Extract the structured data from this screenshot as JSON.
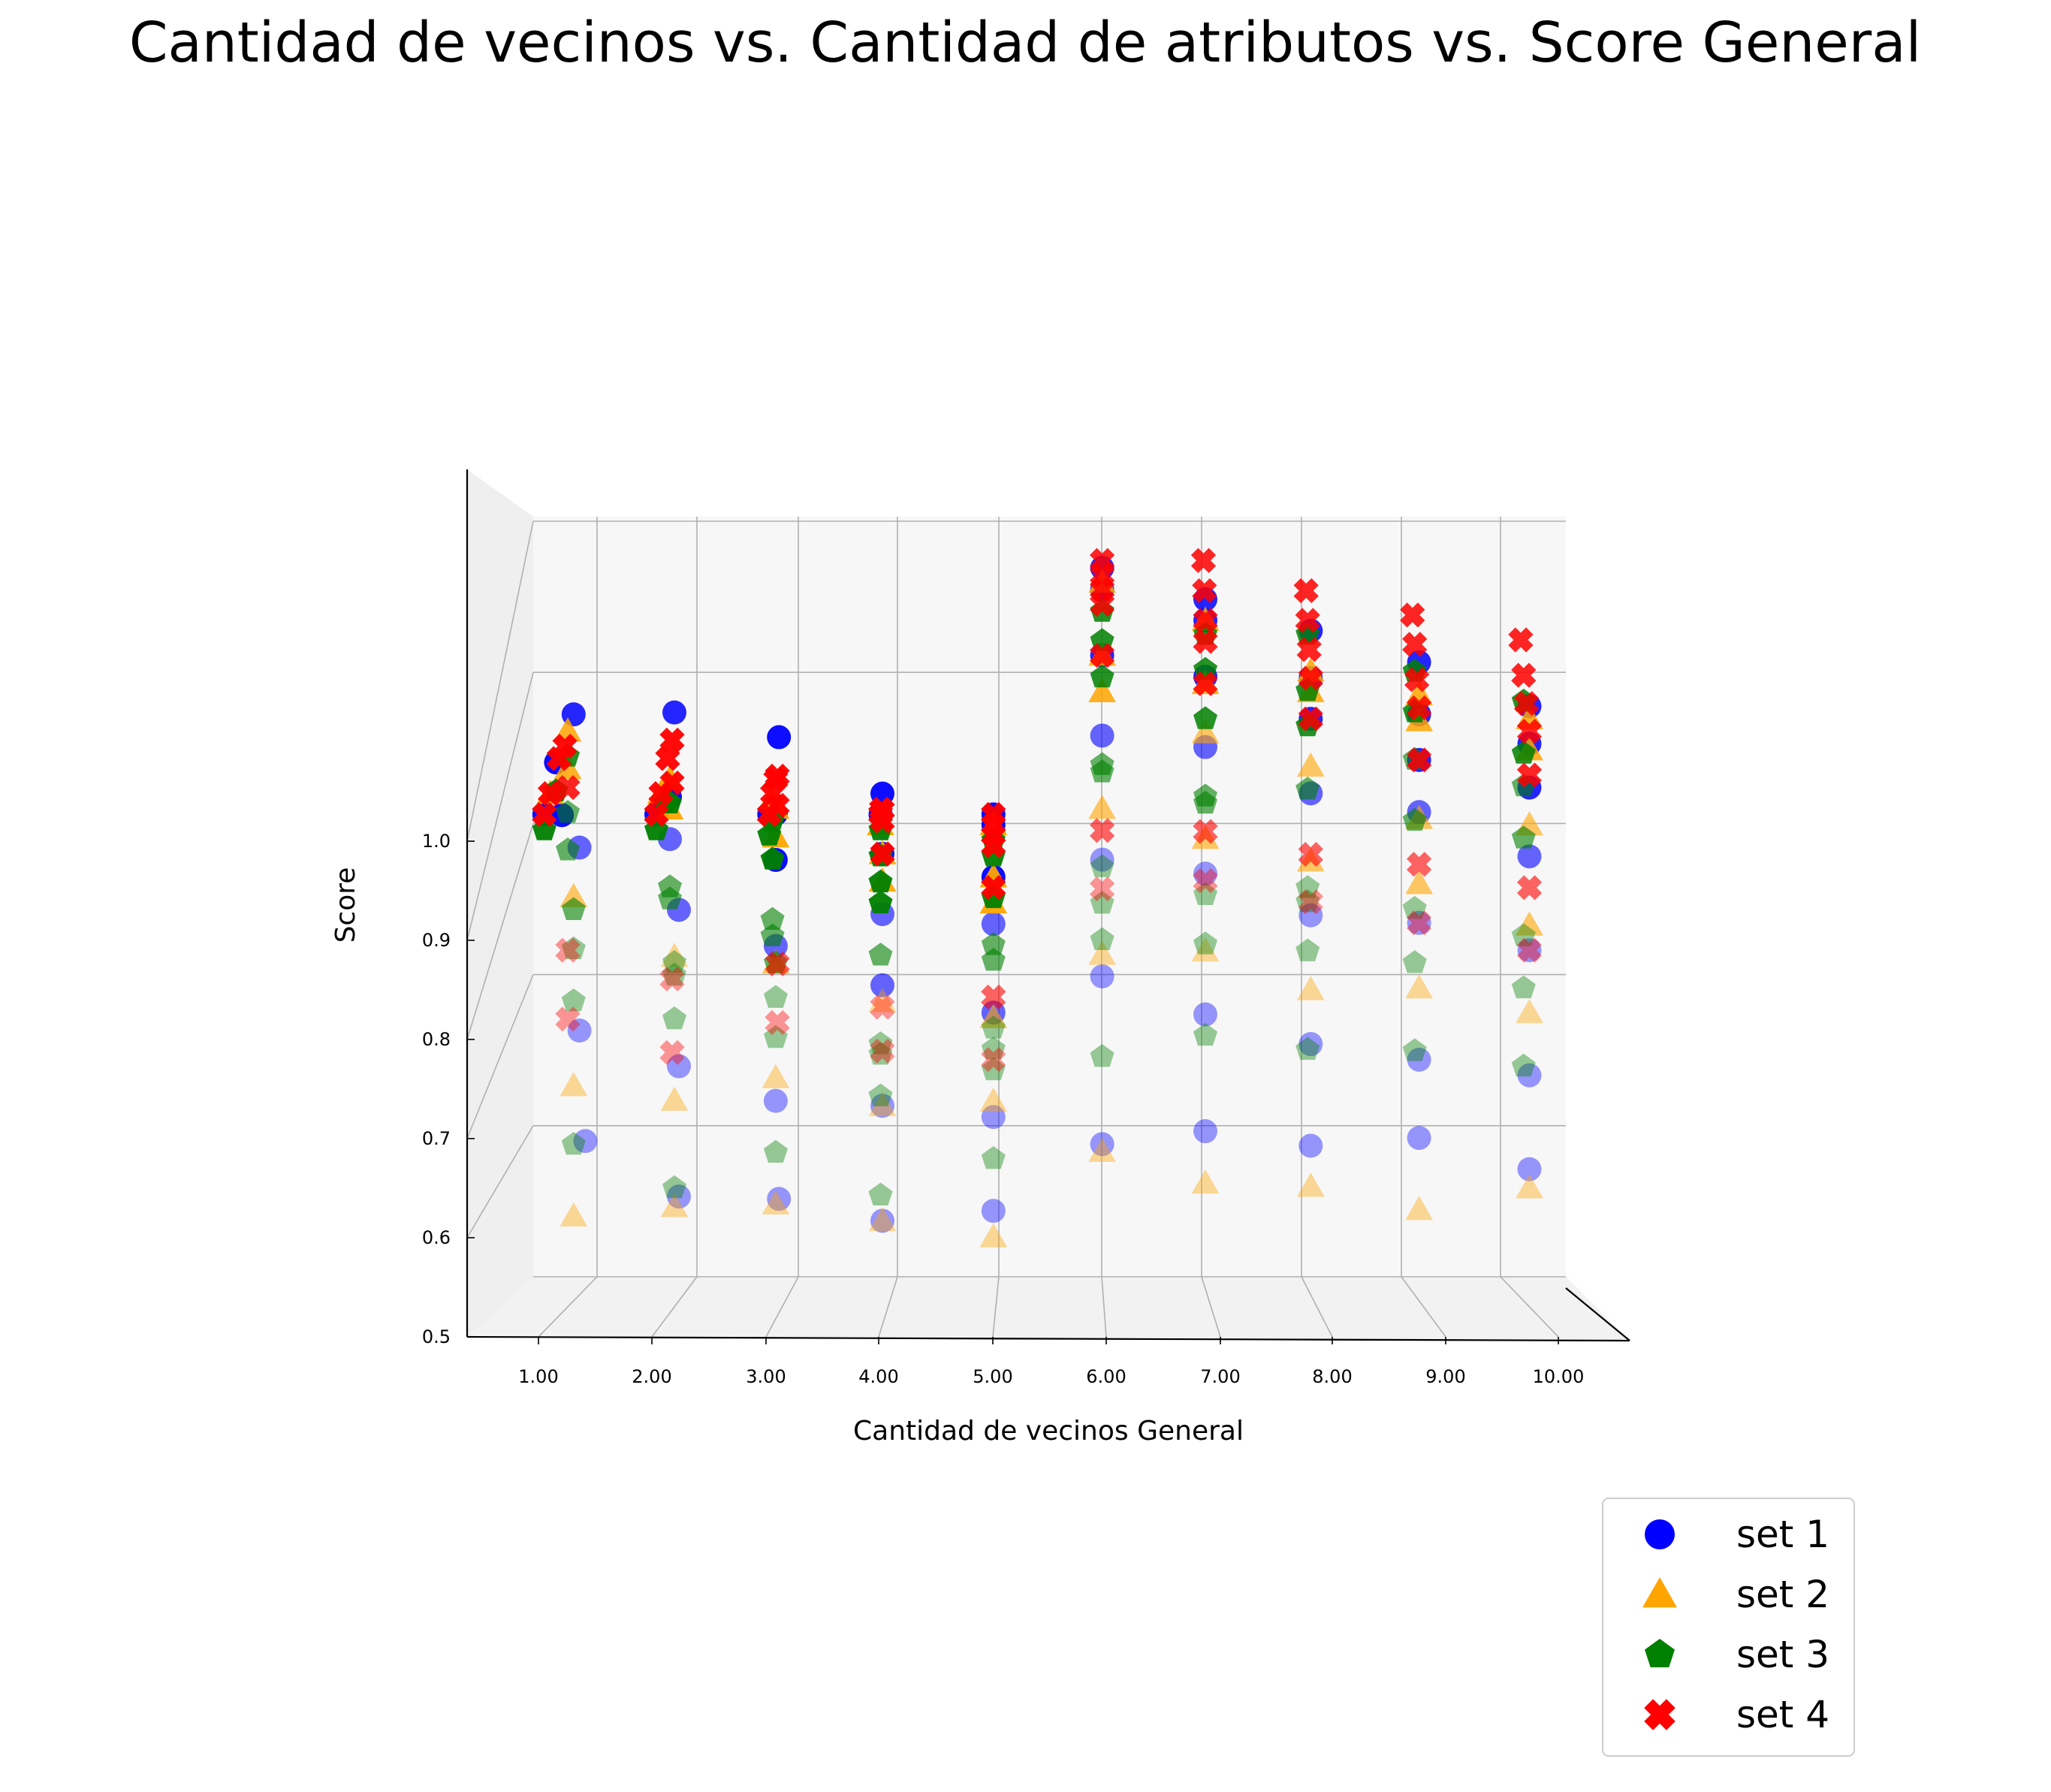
{
  "chart_data": {
    "type": "scatter",
    "title": "Cantidad de vecinos vs. Cantidad de atributos vs. Score General",
    "xlabel": "Cantidad de vecinos General",
    "ylabel": "Score",
    "x_ticks": [
      "1.00",
      "2.00",
      "3.00",
      "4.00",
      "5.00",
      "6.00",
      "7.00",
      "8.00",
      "9.00",
      "10.00"
    ],
    "z_ticks": [
      "0.5",
      "0.6",
      "0.7",
      "0.8",
      "0.9",
      "1.0"
    ],
    "zlim": [
      0.5,
      1.0
    ],
    "xlim": [
      1,
      10
    ],
    "grid": true,
    "legend_position": "bottom-right",
    "series": [
      {
        "name": "set 1",
        "marker": "circle",
        "color": "#0000ff"
      },
      {
        "name": "set 2",
        "marker": "triangle",
        "color": "#ffa500"
      },
      {
        "name": "set 3",
        "marker": "pentagon",
        "color": "#008000"
      },
      {
        "name": "set 4",
        "marker": "x",
        "color": "#ff0000"
      }
    ],
    "note_points": "points: [vecinos, score, depth] where depth 0 = front plane, 1 = back plane",
    "points": {
      "set 1": [
        [
          1,
          0.995,
          0.1
        ],
        [
          1,
          0.985,
          0.3
        ],
        [
          1,
          0.95,
          0.6
        ],
        [
          1,
          0.915,
          0.4
        ],
        [
          1,
          0.83,
          0.7
        ],
        [
          1,
          0.695,
          0.7
        ],
        [
          1,
          0.605,
          0.8
        ],
        [
          2,
          0.995,
          0.1
        ],
        [
          2,
          0.975,
          0.5
        ],
        [
          2,
          0.93,
          0.4
        ],
        [
          2,
          0.895,
          0.4
        ],
        [
          2,
          0.8,
          0.6
        ],
        [
          2,
          0.68,
          0.6
        ],
        [
          2,
          0.58,
          0.6
        ],
        [
          3,
          0.995,
          0.1
        ],
        [
          3,
          0.98,
          0.4
        ],
        [
          3,
          0.94,
          0.3
        ],
        [
          3,
          0.9,
          0.3
        ],
        [
          3,
          0.825,
          0.3
        ],
        [
          3,
          0.69,
          0.3
        ],
        [
          3,
          0.595,
          0.4
        ],
        [
          4,
          0.995,
          0.1
        ],
        [
          4,
          0.985,
          0.2
        ],
        [
          4,
          0.93,
          0.2
        ],
        [
          4,
          0.875,
          0.2
        ],
        [
          4,
          0.81,
          0.2
        ],
        [
          4,
          0.7,
          0.2
        ],
        [
          4,
          0.595,
          0.2
        ],
        [
          5,
          0.995,
          0.1
        ],
        [
          5,
          0.985,
          0.1
        ],
        [
          5,
          0.935,
          0.1
        ],
        [
          5,
          0.89,
          0.1
        ],
        [
          5,
          0.805,
          0.1
        ],
        [
          5,
          0.705,
          0.1
        ],
        [
          5,
          0.615,
          0.1
        ],
        [
          6,
          0.99,
          0.9
        ],
        [
          6,
          0.975,
          0.9
        ],
        [
          6,
          0.93,
          0.9
        ],
        [
          6,
          0.875,
          0.9
        ],
        [
          6,
          0.79,
          0.9
        ],
        [
          6,
          0.71,
          0.9
        ],
        [
          6,
          0.595,
          0.9
        ],
        [
          7,
          0.99,
          0.8
        ],
        [
          7,
          0.975,
          0.8
        ],
        [
          7,
          0.935,
          0.8
        ],
        [
          7,
          0.885,
          0.8
        ],
        [
          7,
          0.795,
          0.8
        ],
        [
          7,
          0.695,
          0.8
        ],
        [
          7,
          0.612,
          0.8
        ],
        [
          8,
          0.99,
          0.7
        ],
        [
          8,
          0.955,
          0.7
        ],
        [
          8,
          0.925,
          0.7
        ],
        [
          8,
          0.87,
          0.7
        ],
        [
          8,
          0.78,
          0.7
        ],
        [
          8,
          0.685,
          0.7
        ],
        [
          8,
          0.61,
          0.7
        ],
        [
          9,
          0.99,
          0.6
        ],
        [
          9,
          0.95,
          0.6
        ],
        [
          9,
          0.915,
          0.6
        ],
        [
          9,
          0.875,
          0.6
        ],
        [
          9,
          0.79,
          0.6
        ],
        [
          9,
          0.685,
          0.6
        ],
        [
          9,
          0.625,
          0.6
        ],
        [
          10,
          0.98,
          0.5
        ],
        [
          10,
          0.95,
          0.5
        ],
        [
          10,
          0.915,
          0.5
        ],
        [
          10,
          0.86,
          0.5
        ],
        [
          10,
          0.785,
          0.5
        ],
        [
          10,
          0.685,
          0.5
        ],
        [
          10,
          0.61,
          0.5
        ]
      ],
      "set 2": [
        [
          1,
          0.985,
          0.2
        ],
        [
          1,
          0.96,
          0.5
        ],
        [
          1,
          0.93,
          0.5
        ],
        [
          1,
          0.81,
          0.6
        ],
        [
          1,
          0.665,
          0.6
        ],
        [
          1,
          0.565,
          0.6
        ],
        [
          2,
          0.985,
          0.2
        ],
        [
          2,
          0.945,
          0.4
        ],
        [
          2,
          0.92,
          0.4
        ],
        [
          2,
          0.78,
          0.5
        ],
        [
          2,
          0.665,
          0.5
        ],
        [
          2,
          0.58,
          0.5
        ],
        [
          3,
          0.98,
          0.2
        ],
        [
          3,
          0.945,
          0.3
        ],
        [
          3,
          0.92,
          0.3
        ],
        [
          3,
          0.81,
          0.3
        ],
        [
          3,
          0.71,
          0.3
        ],
        [
          3,
          0.6,
          0.3
        ],
        [
          4,
          0.985,
          0.1
        ],
        [
          4,
          0.93,
          0.2
        ],
        [
          4,
          0.905,
          0.2
        ],
        [
          4,
          0.795,
          0.2
        ],
        [
          4,
          0.7,
          0.2
        ],
        [
          4,
          0.595,
          0.2
        ],
        [
          5,
          0.985,
          0.1
        ],
        [
          5,
          0.935,
          0.1
        ],
        [
          5,
          0.91,
          0.1
        ],
        [
          5,
          0.8,
          0.1
        ],
        [
          5,
          0.72,
          0.1
        ],
        [
          5,
          0.59,
          0.1
        ],
        [
          6,
          0.98,
          0.9
        ],
        [
          6,
          0.93,
          0.9
        ],
        [
          6,
          0.905,
          0.9
        ],
        [
          6,
          0.825,
          0.9
        ],
        [
          6,
          0.725,
          0.9
        ],
        [
          6,
          0.59,
          0.9
        ],
        [
          7,
          0.975,
          0.8
        ],
        [
          7,
          0.93,
          0.8
        ],
        [
          7,
          0.895,
          0.8
        ],
        [
          7,
          0.82,
          0.8
        ],
        [
          7,
          0.74,
          0.8
        ],
        [
          7,
          0.575,
          0.8
        ],
        [
          8,
          0.96,
          0.7
        ],
        [
          8,
          0.945,
          0.7
        ],
        [
          8,
          0.89,
          0.7
        ],
        [
          8,
          0.82,
          0.7
        ],
        [
          8,
          0.725,
          0.7
        ],
        [
          8,
          0.58,
          0.7
        ],
        [
          9,
          0.965,
          0.6
        ],
        [
          9,
          0.945,
          0.6
        ],
        [
          9,
          0.87,
          0.6
        ],
        [
          9,
          0.82,
          0.6
        ],
        [
          9,
          0.74,
          0.6
        ],
        [
          9,
          0.57,
          0.6
        ],
        [
          10,
          0.97,
          0.5
        ],
        [
          10,
          0.945,
          0.5
        ],
        [
          10,
          0.885,
          0.5
        ],
        [
          10,
          0.805,
          0.5
        ],
        [
          10,
          0.735,
          0.5
        ],
        [
          10,
          0.595,
          0.5
        ]
      ],
      "set 3": [
        [
          1,
          0.98,
          0.1
        ],
        [
          1,
          0.96,
          0.3
        ],
        [
          1,
          0.94,
          0.5
        ],
        [
          1,
          0.895,
          0.5
        ],
        [
          1,
          0.865,
          0.5
        ],
        [
          1,
          0.8,
          0.6
        ],
        [
          1,
          0.77,
          0.6
        ],
        [
          1,
          0.73,
          0.6
        ],
        [
          1,
          0.62,
          0.6
        ],
        [
          2,
          0.98,
          0.1
        ],
        [
          2,
          0.95,
          0.3
        ],
        [
          2,
          0.925,
          0.4
        ],
        [
          2,
          0.855,
          0.4
        ],
        [
          2,
          0.845,
          0.4
        ],
        [
          2,
          0.775,
          0.5
        ],
        [
          2,
          0.765,
          0.5
        ],
        [
          2,
          0.73,
          0.5
        ],
        [
          2,
          0.595,
          0.5
        ],
        [
          3,
          0.975,
          0.1
        ],
        [
          3,
          0.96,
          0.2
        ],
        [
          3,
          0.925,
          0.2
        ],
        [
          3,
          0.87,
          0.2
        ],
        [
          3,
          0.855,
          0.2
        ],
        [
          3,
          0.81,
          0.3
        ],
        [
          3,
          0.78,
          0.3
        ],
        [
          3,
          0.745,
          0.3
        ],
        [
          3,
          0.645,
          0.3
        ],
        [
          4,
          0.98,
          0.1
        ],
        [
          4,
          0.955,
          0.1
        ],
        [
          4,
          0.93,
          0.1
        ],
        [
          4,
          0.91,
          0.1
        ],
        [
          4,
          0.86,
          0.1
        ],
        [
          4,
          0.775,
          0.1
        ],
        [
          4,
          0.765,
          0.1
        ],
        [
          4,
          0.725,
          0.1
        ],
        [
          4,
          0.63,
          0.1
        ],
        [
          5,
          0.97,
          0.1
        ],
        [
          5,
          0.955,
          0.1
        ],
        [
          5,
          0.915,
          0.1
        ],
        [
          5,
          0.87,
          0.1
        ],
        [
          5,
          0.855,
          0.1
        ],
        [
          5,
          0.79,
          0.1
        ],
        [
          5,
          0.77,
          0.1
        ],
        [
          5,
          0.75,
          0.1
        ],
        [
          5,
          0.665,
          0.1
        ],
        [
          6,
          0.96,
          0.9
        ],
        [
          6,
          0.94,
          0.9
        ],
        [
          6,
          0.915,
          0.9
        ],
        [
          6,
          0.855,
          0.9
        ],
        [
          6,
          0.85,
          0.9
        ],
        [
          6,
          0.785,
          0.9
        ],
        [
          6,
          0.76,
          0.9
        ],
        [
          6,
          0.735,
          0.9
        ],
        [
          6,
          0.655,
          0.9
        ],
        [
          7,
          0.965,
          0.8
        ],
        [
          7,
          0.94,
          0.8
        ],
        [
          7,
          0.905,
          0.8
        ],
        [
          7,
          0.85,
          0.8
        ],
        [
          7,
          0.845,
          0.8
        ],
        [
          7,
          0.78,
          0.8
        ],
        [
          7,
          0.745,
          0.8
        ],
        [
          7,
          0.68,
          0.8
        ],
        [
          8,
          0.965,
          0.8
        ],
        [
          8,
          0.925,
          0.8
        ],
        [
          8,
          0.9,
          0.8
        ],
        [
          8,
          0.855,
          0.8
        ],
        [
          8,
          0.785,
          0.8
        ],
        [
          8,
          0.775,
          0.8
        ],
        [
          8,
          0.74,
          0.8
        ],
        [
          8,
          0.67,
          0.8
        ],
        [
          9,
          0.96,
          0.7
        ],
        [
          9,
          0.93,
          0.7
        ],
        [
          9,
          0.895,
          0.7
        ],
        [
          9,
          0.85,
          0.7
        ],
        [
          9,
          0.785,
          0.7
        ],
        [
          9,
          0.745,
          0.7
        ],
        [
          9,
          0.68,
          0.7
        ],
        [
          10,
          0.96,
          0.6
        ],
        [
          10,
          0.92,
          0.6
        ],
        [
          10,
          0.895,
          0.6
        ],
        [
          10,
          0.855,
          0.6
        ],
        [
          10,
          0.78,
          0.6
        ],
        [
          10,
          0.74,
          0.6
        ],
        [
          10,
          0.68,
          0.6
        ]
      ],
      "set 4": [
        [
          1,
          0.995,
          0.1
        ],
        [
          1,
          0.985,
          0.2
        ],
        [
          1,
          0.975,
          0.35
        ],
        [
          1,
          0.96,
          0.45
        ],
        [
          1,
          0.915,
          0.5
        ],
        [
          1,
          0.785,
          0.5
        ],
        [
          1,
          0.73,
          0.5
        ],
        [
          2,
          0.995,
          0.1
        ],
        [
          2,
          0.985,
          0.2
        ],
        [
          2,
          0.975,
          0.35
        ],
        [
          2,
          0.965,
          0.45
        ],
        [
          2,
          0.93,
          0.45
        ],
        [
          2,
          0.77,
          0.45
        ],
        [
          2,
          0.71,
          0.45
        ],
        [
          3,
          0.995,
          0.1
        ],
        [
          3,
          0.985,
          0.2
        ],
        [
          3,
          0.97,
          0.3
        ],
        [
          3,
          0.96,
          0.35
        ],
        [
          3,
          0.935,
          0.35
        ],
        [
          3,
          0.8,
          0.35
        ],
        [
          3,
          0.75,
          0.35
        ],
        [
          4,
          0.995,
          0.1
        ],
        [
          4,
          0.985,
          0.15
        ],
        [
          4,
          0.97,
          0.2
        ],
        [
          4,
          0.96,
          0.2
        ],
        [
          4,
          0.93,
          0.2
        ],
        [
          4,
          0.79,
          0.2
        ],
        [
          4,
          0.75,
          0.2
        ],
        [
          5,
          0.995,
          0.1
        ],
        [
          5,
          0.985,
          0.1
        ],
        [
          5,
          0.975,
          0.1
        ],
        [
          5,
          0.965,
          0.1
        ],
        [
          5,
          0.925,
          0.1
        ],
        [
          5,
          0.82,
          0.1
        ],
        [
          5,
          0.76,
          0.1
        ],
        [
          6,
          0.995,
          0.9
        ],
        [
          6,
          0.985,
          0.9
        ],
        [
          6,
          0.975,
          0.9
        ],
        [
          6,
          0.965,
          0.9
        ],
        [
          6,
          0.93,
          0.9
        ],
        [
          6,
          0.81,
          0.9
        ],
        [
          6,
          0.77,
          0.9
        ],
        [
          7,
          0.995,
          0.9
        ],
        [
          7,
          0.985,
          0.85
        ],
        [
          7,
          0.975,
          0.8
        ],
        [
          7,
          0.96,
          0.8
        ],
        [
          7,
          0.93,
          0.8
        ],
        [
          7,
          0.825,
          0.8
        ],
        [
          7,
          0.79,
          0.8
        ],
        [
          8,
          0.985,
          0.85
        ],
        [
          8,
          0.975,
          0.8
        ],
        [
          8,
          0.965,
          0.75
        ],
        [
          8,
          0.955,
          0.7
        ],
        [
          8,
          0.925,
          0.7
        ],
        [
          8,
          0.825,
          0.7
        ],
        [
          8,
          0.79,
          0.7
        ],
        [
          9,
          0.99,
          0.75
        ],
        [
          9,
          0.98,
          0.7
        ],
        [
          9,
          0.965,
          0.65
        ],
        [
          9,
          0.955,
          0.6
        ],
        [
          9,
          0.915,
          0.6
        ],
        [
          9,
          0.835,
          0.6
        ],
        [
          9,
          0.79,
          0.6
        ],
        [
          10,
          0.995,
          0.65
        ],
        [
          10,
          0.98,
          0.6
        ],
        [
          10,
          0.97,
          0.55
        ],
        [
          10,
          0.96,
          0.5
        ],
        [
          10,
          0.925,
          0.5
        ],
        [
          10,
          0.835,
          0.5
        ],
        [
          10,
          0.785,
          0.5
        ]
      ]
    }
  }
}
